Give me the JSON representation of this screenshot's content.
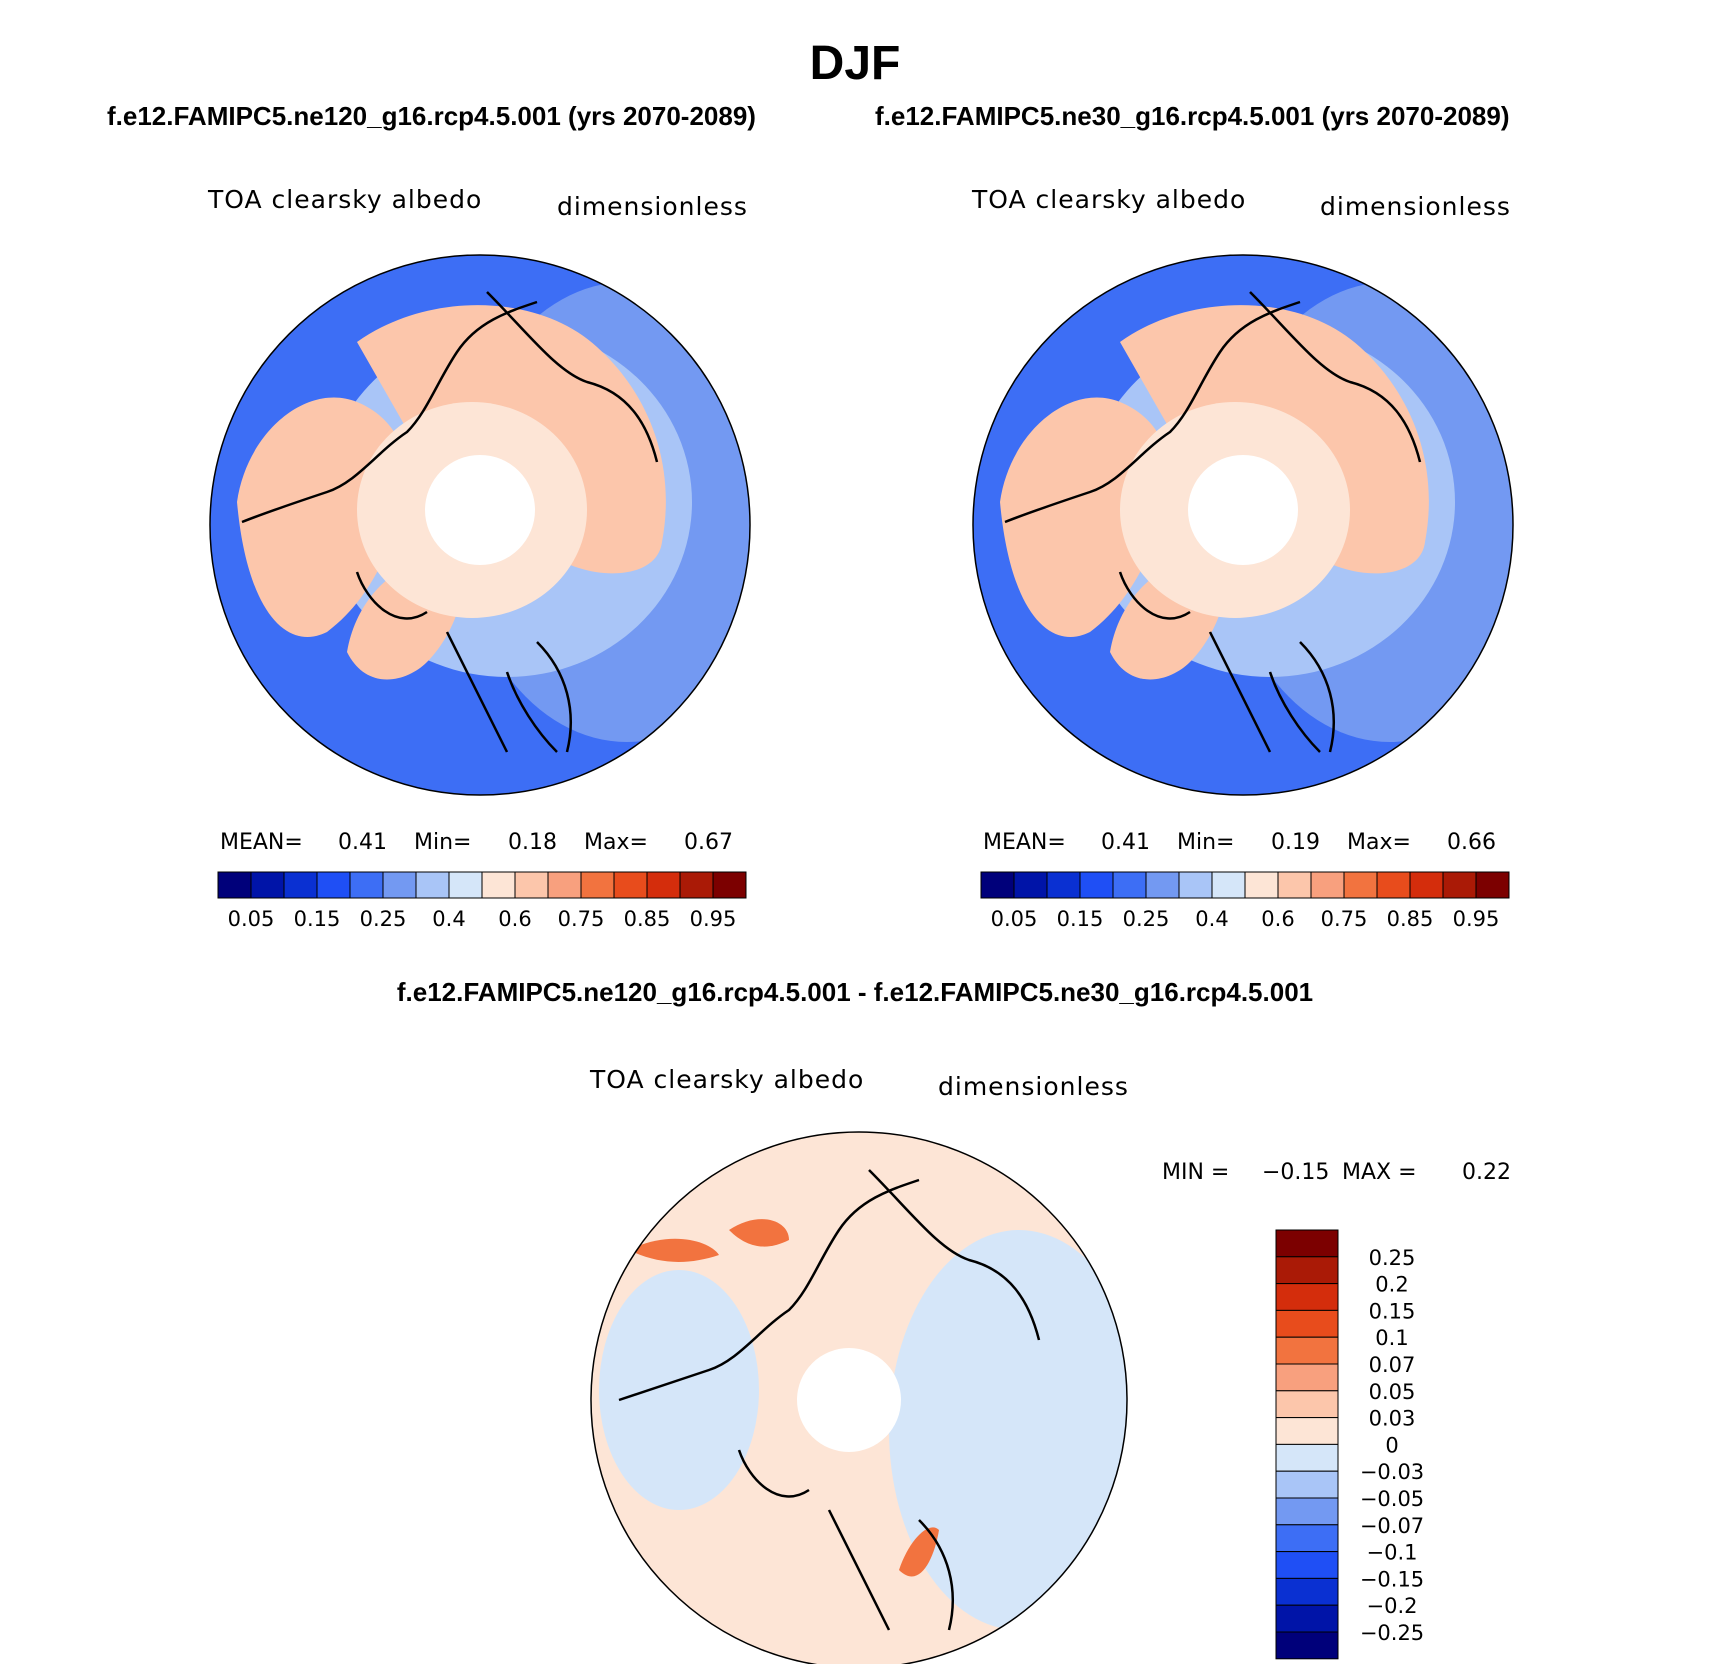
{
  "figure": {
    "season": "DJF",
    "case1_title": "f.e12.FAMIPC5.ne120_g16.rcp4.5.001 (yrs 2070-2089)",
    "case2_title": "f.e12.FAMIPC5.ne30_g16.rcp4.5.001 (yrs 2070-2089)",
    "diff_title": "f.e12.FAMIPC5.ne120_g16.rcp4.5.001 - f.e12.FAMIPC5.ne30_g16.rcp4.5.001"
  },
  "panels": [
    {
      "variable": "TOA clearsky albedo",
      "units": "dimensionless",
      "stats": {
        "mean_label": "MEAN=",
        "mean": "0.41",
        "min_label": "Min=",
        "min": "0.18",
        "max_label": "Max=",
        "max": "0.67"
      }
    },
    {
      "variable": "TOA clearsky albedo",
      "units": "dimensionless",
      "stats": {
        "mean_label": "MEAN=",
        "mean": "0.41",
        "min_label": "Min=",
        "min": "0.19",
        "max_label": "Max=",
        "max": "0.66"
      }
    },
    {
      "variable": "TOA clearsky albedo",
      "units": "dimensionless",
      "stats": {
        "min_label": "MIN =",
        "min": "−0.15",
        "max_label": "MAX =",
        "max": "0.22"
      }
    }
  ],
  "colorbars": {
    "absolute": {
      "colors": [
        "#00007a",
        "#0014a8",
        "#0a30d2",
        "#1f4ff5",
        "#3d6ef5",
        "#7399f2",
        "#a9c5f7",
        "#d5e6f9",
        "#fde5d6",
        "#fcc6ab",
        "#f8a07e",
        "#f2733f",
        "#e84c1c",
        "#d42d0c",
        "#aa1a06",
        "#7c0000"
      ],
      "tick_labels": [
        "0.05",
        "0.15",
        "0.25",
        "0.4",
        "0.6",
        "0.75",
        "0.85",
        "0.95"
      ]
    },
    "difference": {
      "colors": [
        "#7c0000",
        "#aa1a06",
        "#d42d0c",
        "#e84c1c",
        "#f2733f",
        "#f8a07e",
        "#fcc6ab",
        "#fde5d6",
        "#d5e6f9",
        "#a9c5f7",
        "#7399f2",
        "#3d6ef5",
        "#1f4ff5",
        "#0a30d2",
        "#0014a8",
        "#00007a"
      ],
      "tick_labels": [
        "0.25",
        "0.2",
        "0.15",
        "0.1",
        "0.07",
        "0.05",
        "0.03",
        "0",
        "−0.03",
        "−0.05",
        "−0.07",
        "−0.1",
        "−0.15",
        "−0.2",
        "−0.25"
      ]
    }
  },
  "maps": {
    "absolute": {
      "ocean_far": "#3d6ef5",
      "ocean_mid": "#7399f2",
      "sea_ice": "#a9c5f7",
      "land": "#fcc6ab",
      "polar_ring": "#fde5d6",
      "pole_hole": "#ffffff"
    },
    "difference": {
      "background": "#fde5d6",
      "negative": "#d5e6f9",
      "positive": "#f2733f",
      "pole_hole": "#ffffff"
    }
  }
}
